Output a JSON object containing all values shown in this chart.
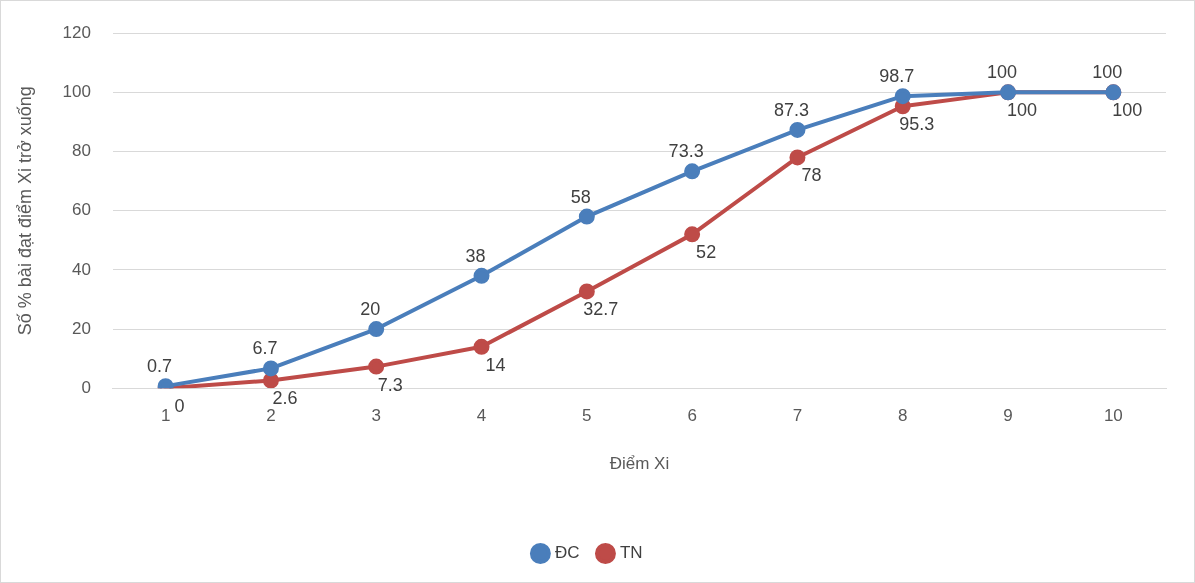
{
  "chart_data": {
    "type": "line",
    "xlabel": "Điểm Xi",
    "ylabel": "Số % bài đạt điểm Xi trở xuống",
    "categories": [
      "1",
      "2",
      "3",
      "4",
      "5",
      "6",
      "7",
      "8",
      "9",
      "10"
    ],
    "series": [
      {
        "name": "ĐC",
        "color": "#4a7ebb",
        "values": [
          0.7,
          6.7,
          20,
          38,
          58,
          73.3,
          87.3,
          98.7,
          100,
          100
        ]
      },
      {
        "name": "TN",
        "color": "#be4b48",
        "values": [
          0,
          2.6,
          7.3,
          14,
          32.7,
          52,
          78,
          95.3,
          100,
          100
        ]
      }
    ],
    "ylim": [
      0,
      120
    ],
    "yticks": [
      0,
      20,
      40,
      60,
      80,
      100,
      120
    ],
    "grid": "y",
    "legend": "bottom",
    "marker": "circle",
    "line_style": "solid",
    "data_labels": true
  }
}
